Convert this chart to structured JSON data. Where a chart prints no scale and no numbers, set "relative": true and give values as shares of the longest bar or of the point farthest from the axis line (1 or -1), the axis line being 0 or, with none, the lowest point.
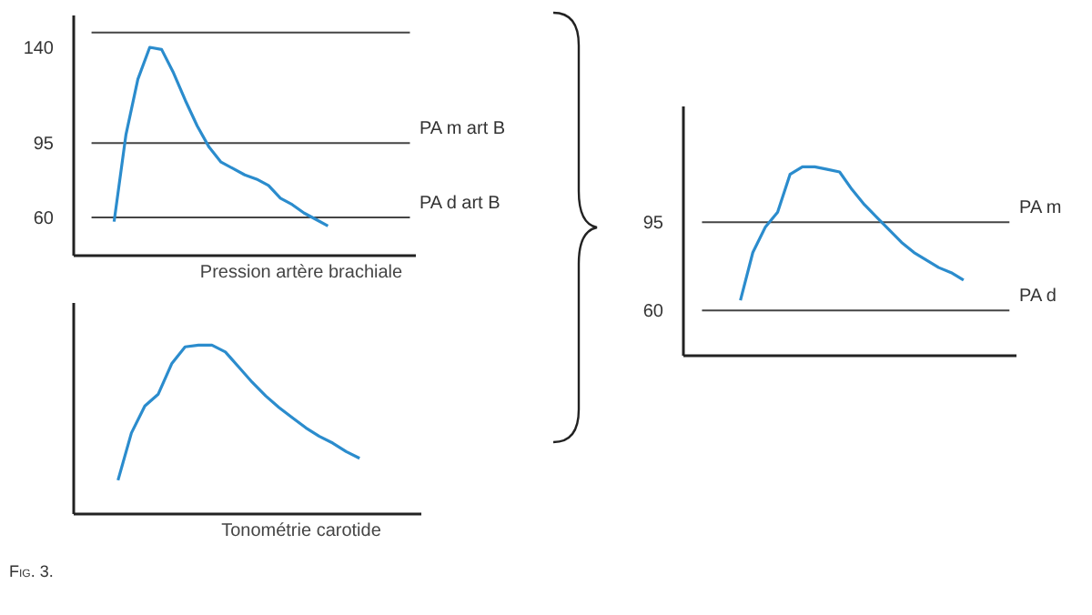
{
  "chart_data": [
    {
      "type": "line",
      "xlabel": "Pression artère brachiale",
      "categories": [
        null,
        null,
        null,
        null,
        null,
        null,
        null,
        null,
        null,
        null,
        null,
        null,
        null,
        null,
        null,
        null,
        null,
        null,
        null
      ],
      "series": [
        {
          "color": "#2b8ccd",
          "values": [
            58,
            99,
            125,
            140,
            139,
            128,
            115,
            103,
            93,
            86,
            83,
            80,
            78,
            75,
            69,
            66,
            62,
            59,
            56
          ]
        }
      ],
      "ylim": [
        42,
        155
      ],
      "yticks": [
        60,
        95,
        140
      ],
      "tick_labels": "y",
      "ref_lines": [
        {
          "axis": "y",
          "value": 147,
          "color": "#444444"
        },
        {
          "axis": "y",
          "value": 95,
          "label": "PA m art B",
          "color": "#444444"
        },
        {
          "axis": "y",
          "value": 60,
          "label": "PA d art B",
          "color": "#444444"
        }
      ],
      "annotations": [
        "Fig. 3."
      ]
    },
    {
      "type": "line",
      "relative": true,
      "xlabel": "Tonométrie carotide",
      "categories": [
        null,
        null,
        null,
        null,
        null,
        null,
        null,
        null,
        null,
        null,
        null,
        null,
        null,
        null,
        null,
        null,
        null,
        null,
        null
      ],
      "series": [
        {
          "color": "#2b8ccd",
          "values": [
            0.2,
            0.48,
            0.64,
            0.71,
            0.89,
            0.99,
            1.0,
            1.0,
            0.96,
            0.87,
            0.78,
            0.7,
            0.63,
            0.57,
            0.51,
            0.46,
            0.42,
            0.37,
            0.33
          ]
        }
      ],
      "tick_labels": false
    },
    {
      "type": "line",
      "categories": [
        null,
        null,
        null,
        null,
        null,
        null,
        null,
        null,
        null,
        null,
        null,
        null,
        null,
        null,
        null,
        null,
        null,
        null,
        null
      ],
      "series": [
        {
          "color": "#2b8ccd",
          "values": [
            64,
            83,
            93,
            99,
            114,
            117,
            117,
            116,
            115,
            108,
            102,
            97,
            92,
            87,
            83,
            80,
            77,
            75,
            72
          ]
        }
      ],
      "ylim": [
        42,
        141
      ],
      "yticks": [
        60,
        95
      ],
      "tick_labels": "y",
      "ref_lines": [
        {
          "axis": "y",
          "value": 95,
          "label": "PA m",
          "color": "#444444"
        },
        {
          "axis": "y",
          "value": 60,
          "label": "PA d",
          "color": "#444444"
        }
      ]
    }
  ]
}
